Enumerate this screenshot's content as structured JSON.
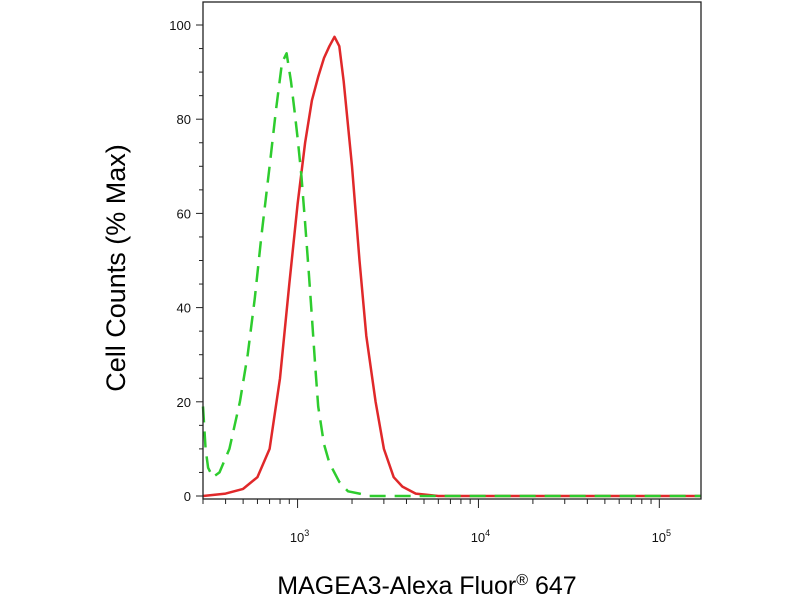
{
  "chart_data": {
    "type": "line",
    "title": "",
    "xlabel": {
      "main": "MAGEA3-Alexa Fluor",
      "sup": "®",
      "tail": " 647"
    },
    "ylabel": "Cell Counts (% Max)",
    "x_scale": "log",
    "xlim": [
      300,
      170000
    ],
    "ylim": [
      0,
      100
    ],
    "y_ticks": [
      0,
      20,
      40,
      60,
      80,
      100
    ],
    "x_ticks": [
      {
        "value": 1000,
        "base": "10",
        "exp": "3"
      },
      {
        "value": 10000,
        "base": "10",
        "exp": "4"
      },
      {
        "value": 100000,
        "base": "10",
        "exp": "5"
      }
    ],
    "grid": false,
    "legend": "none",
    "series": [
      {
        "color": "#e0282a",
        "style": "solid",
        "points": [
          [
            300,
            0
          ],
          [
            400,
            0.5
          ],
          [
            500,
            1.5
          ],
          [
            600,
            4
          ],
          [
            700,
            10
          ],
          [
            800,
            25
          ],
          [
            900,
            45
          ],
          [
            1000,
            62
          ],
          [
            1100,
            75
          ],
          [
            1200,
            84
          ],
          [
            1300,
            89
          ],
          [
            1400,
            93
          ],
          [
            1500,
            95.5
          ],
          [
            1600,
            97.5
          ],
          [
            1700,
            95.5
          ],
          [
            1800,
            88
          ],
          [
            2000,
            70
          ],
          [
            2200,
            50
          ],
          [
            2400,
            34
          ],
          [
            2700,
            20
          ],
          [
            3000,
            10
          ],
          [
            3400,
            4
          ],
          [
            3800,
            2
          ],
          [
            4500,
            0.5
          ],
          [
            6000,
            0
          ],
          [
            170000,
            0
          ]
        ]
      },
      {
        "color": "#2ecc2e",
        "style": "dashed",
        "points": [
          [
            300,
            19
          ],
          [
            310,
            10
          ],
          [
            320,
            6
          ],
          [
            340,
            4
          ],
          [
            370,
            5
          ],
          [
            420,
            10
          ],
          [
            480,
            20
          ],
          [
            530,
            30
          ],
          [
            580,
            42
          ],
          [
            630,
            55
          ],
          [
            700,
            70
          ],
          [
            760,
            82
          ],
          [
            820,
            92
          ],
          [
            870,
            94
          ],
          [
            920,
            88
          ],
          [
            960,
            82
          ],
          [
            1000,
            76
          ],
          [
            1050,
            68
          ],
          [
            1100,
            58
          ],
          [
            1150,
            48
          ],
          [
            1200,
            38
          ],
          [
            1250,
            28
          ],
          [
            1300,
            19
          ],
          [
            1400,
            11
          ],
          [
            1500,
            7
          ],
          [
            1700,
            3
          ],
          [
            1900,
            1
          ],
          [
            2200,
            0.5
          ],
          [
            2500,
            0
          ],
          [
            170000,
            0
          ]
        ]
      }
    ]
  }
}
